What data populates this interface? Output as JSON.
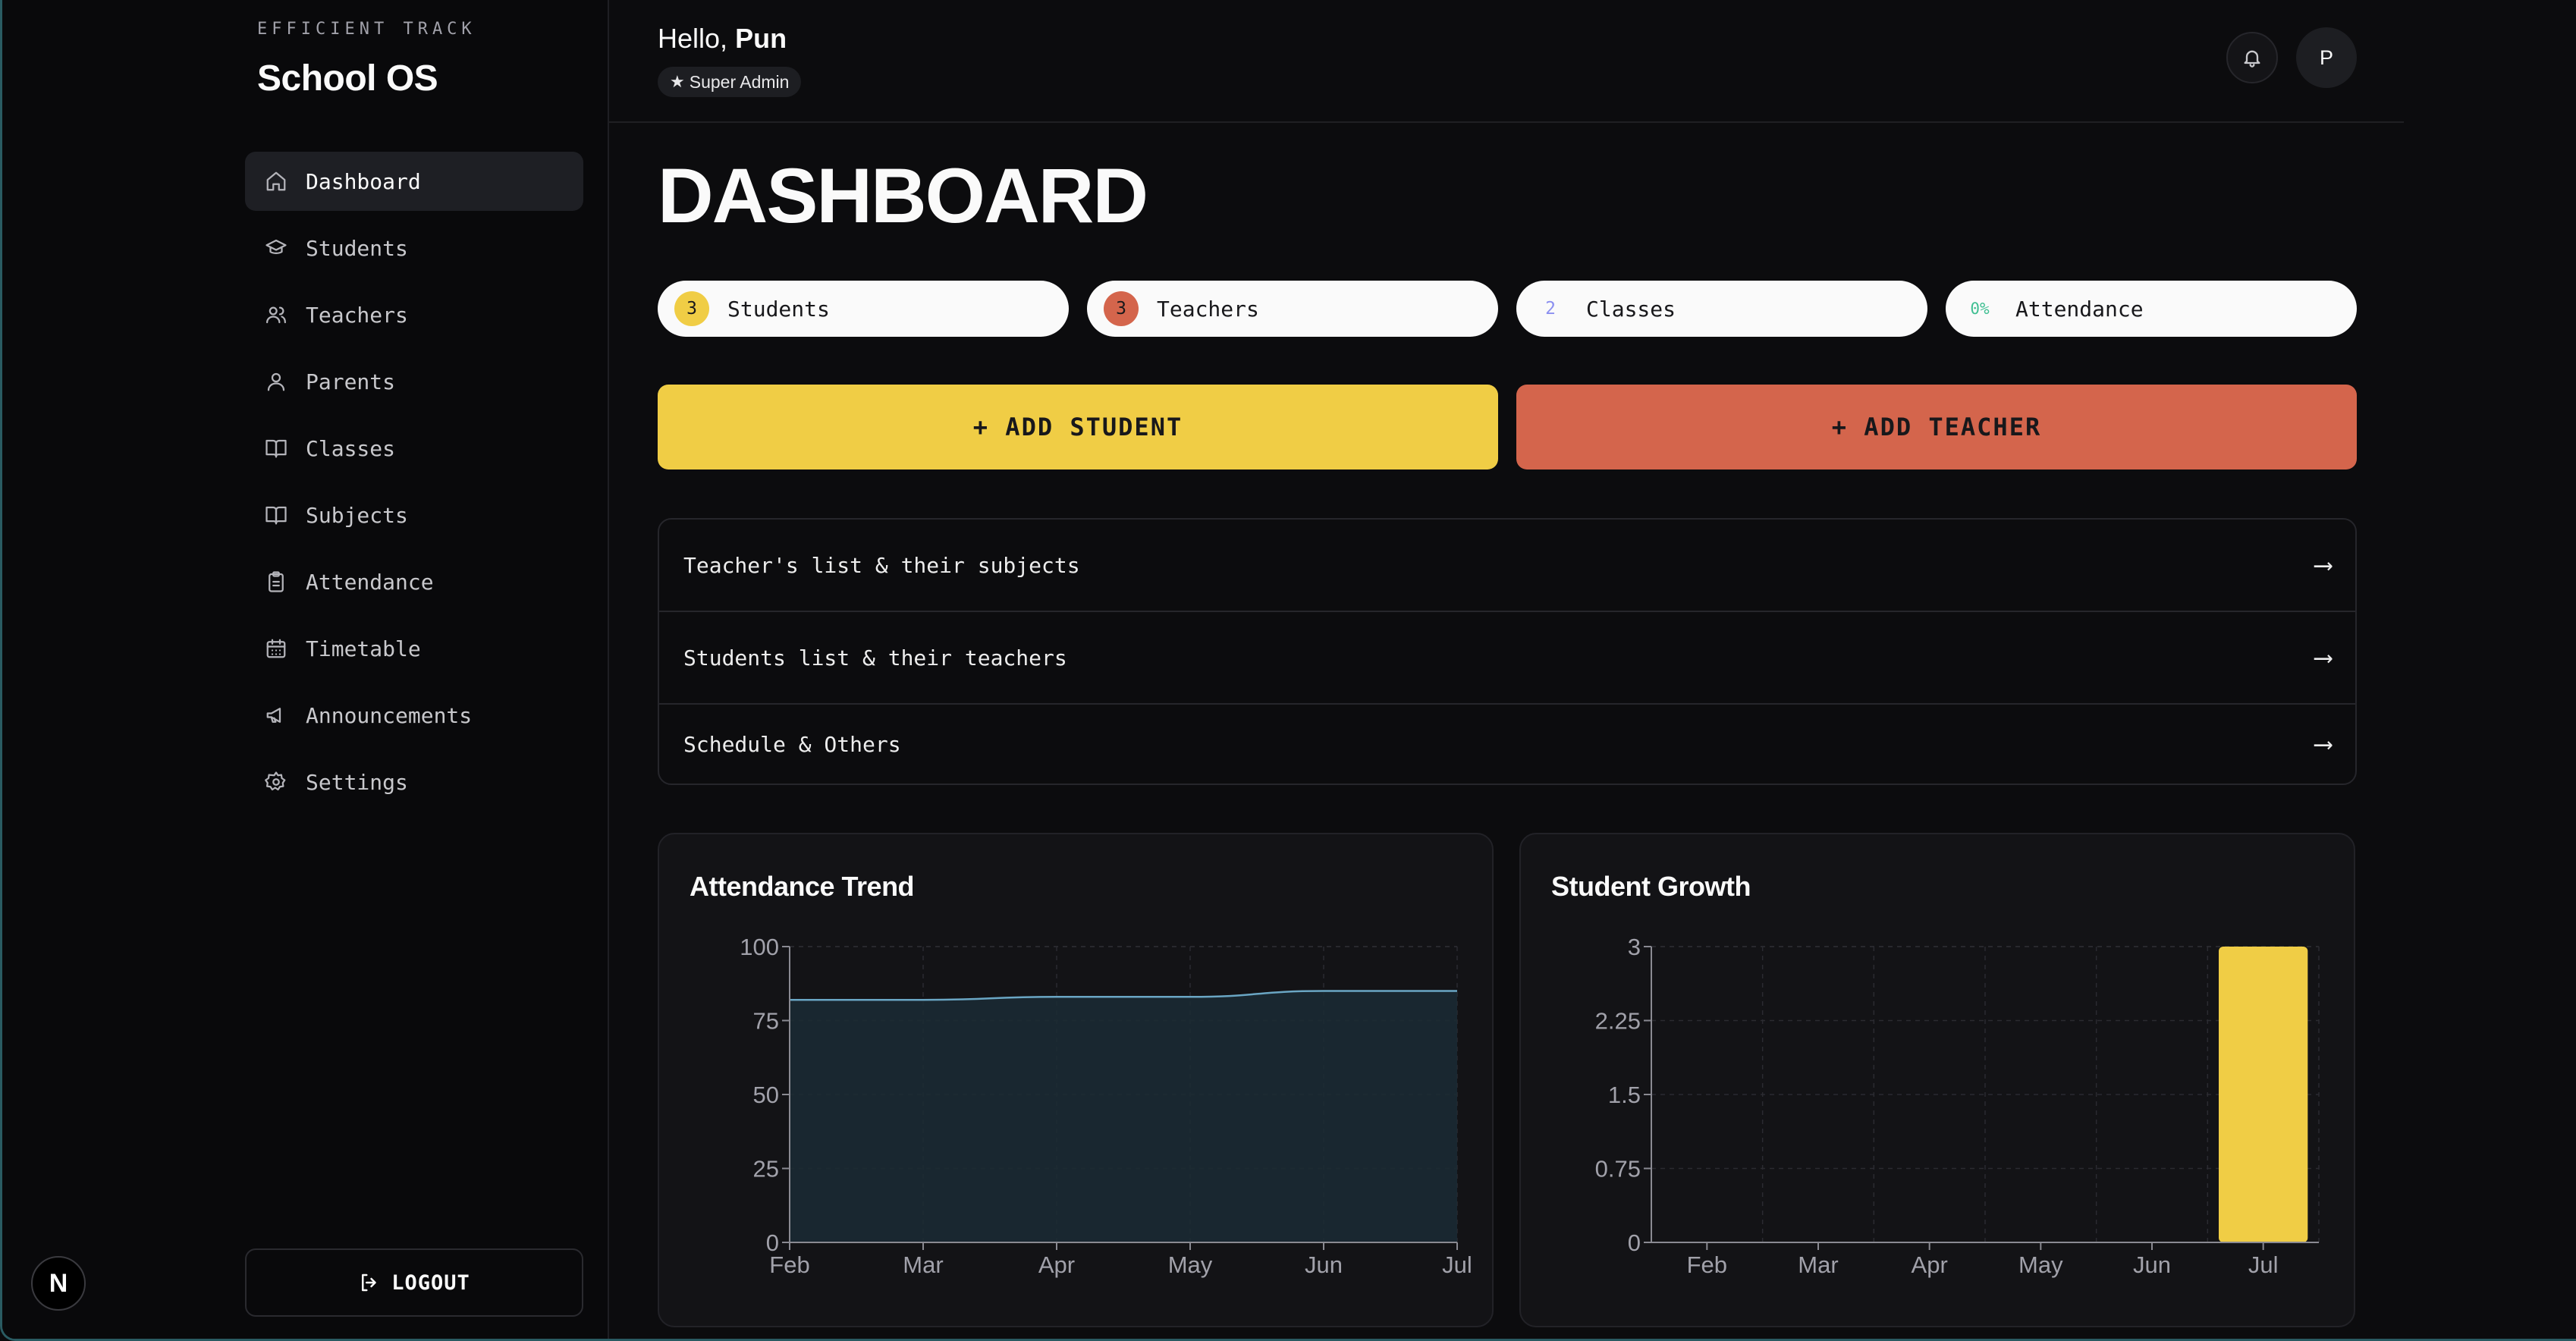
{
  "sidebar": {
    "eyebrow": "EFFICIENT TRACK",
    "brand": "School OS",
    "items": [
      {
        "label": "Dashboard",
        "icon": "home-icon",
        "active": true
      },
      {
        "label": "Students",
        "icon": "graduation-cap-icon"
      },
      {
        "label": "Teachers",
        "icon": "users-icon"
      },
      {
        "label": "Parents",
        "icon": "user-icon"
      },
      {
        "label": "Classes",
        "icon": "book-open-icon"
      },
      {
        "label": "Subjects",
        "icon": "book-open-icon"
      },
      {
        "label": "Attendance",
        "icon": "clipboard-icon"
      },
      {
        "label": "Timetable",
        "icon": "calendar-icon"
      },
      {
        "label": "Announcements",
        "icon": "megaphone-icon"
      },
      {
        "label": "Settings",
        "icon": "gear-icon"
      }
    ],
    "logout_label": "LOGOUT",
    "n_badge": "N"
  },
  "header": {
    "greeting": "Hello,",
    "user_name": "Pun",
    "role": "Super Admin",
    "avatar_initial": "P"
  },
  "main": {
    "title": "DASHBOARD",
    "stats": [
      {
        "value": "3",
        "label": "Students",
        "color": "#f0cd45",
        "text_color": "#18181b"
      },
      {
        "value": "3",
        "label": "Teachers",
        "color": "#d4654c",
        "text_color": "#18181b"
      },
      {
        "value": "2",
        "label": "Classes",
        "color": "transparent",
        "text_color": "#8b8ff0"
      },
      {
        "value": "0%",
        "label": "Attendance",
        "color": "transparent",
        "text_color": "#3fbf92"
      }
    ],
    "add_student_label": "+ ADD STUDENT",
    "add_teacher_label": "+ ADD TEACHER",
    "colors": {
      "yellow": "#f0cd45",
      "coral": "#d4654c"
    },
    "links": [
      {
        "label": "Teacher's list & their subjects",
        "arrow": "⟶"
      },
      {
        "label": "Students list & their teachers",
        "arrow": "⟶"
      },
      {
        "label": "Schedule & Others",
        "arrow": "⟶"
      }
    ]
  },
  "chart_data": [
    {
      "type": "area",
      "title": "Attendance Trend",
      "x": [
        "Feb",
        "Mar",
        "Apr",
        "May",
        "Jun",
        "Jul"
      ],
      "values": [
        82,
        82,
        83,
        83,
        85,
        85
      ],
      "ylim": [
        0,
        100
      ],
      "yticks": [
        "0",
        "25",
        "50",
        "75",
        "100"
      ],
      "grid": true,
      "color": "#6aa6c4"
    },
    {
      "type": "bar",
      "title": "Student Growth",
      "categories": [
        "Feb",
        "Mar",
        "Apr",
        "May",
        "Jun",
        "Jul"
      ],
      "values": [
        0,
        0,
        0,
        0,
        0,
        3
      ],
      "ylim": [
        0,
        3
      ],
      "yticks": [
        "0",
        "0.75",
        "1.5",
        "2.25",
        "3"
      ],
      "grid": true,
      "color": "#f0cd45"
    }
  ]
}
